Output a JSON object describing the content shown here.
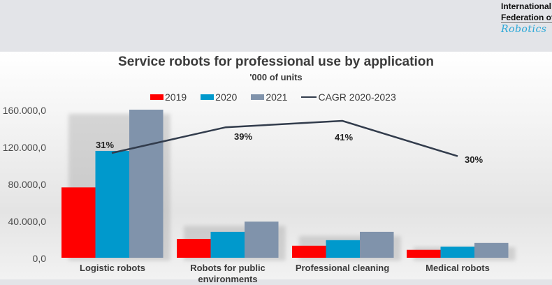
{
  "logo": {
    "line1": "International",
    "line2": "Federation of",
    "line3": "Robotics"
  },
  "chart_data": {
    "type": "bar",
    "title": "Service robots for professional use by application",
    "subtitle": "'000 of units",
    "xlabel": "",
    "ylabel": "",
    "ylim": [
      0,
      160000
    ],
    "y_ticks": [
      "0,0",
      "40.000,0",
      "80.000,0",
      "120.000,0",
      "160.000,0"
    ],
    "y_tick_values": [
      0,
      40000,
      80000,
      120000,
      160000
    ],
    "grid": false,
    "legend_position": "top",
    "categories": [
      "Logistic robots",
      "Robots for public environments",
      "Professional cleaning",
      "Medical robots"
    ],
    "series": [
      {
        "name": "2019",
        "color": "#ff0000",
        "values": [
          76000,
          20400,
          13000,
          8500
        ]
      },
      {
        "name": "2020",
        "color": "#0099cc",
        "values": [
          115500,
          28000,
          19000,
          12000
        ]
      },
      {
        "name": "2021",
        "color": "#8093ab",
        "values": [
          160000,
          39000,
          28000,
          16000
        ]
      }
    ],
    "line_series": {
      "name": "CAGR 2020-2023",
      "color": "#323c4c",
      "values": [
        31,
        39,
        41,
        30
      ],
      "labels": [
        "31%",
        "39%",
        "41%",
        "30%"
      ]
    }
  }
}
